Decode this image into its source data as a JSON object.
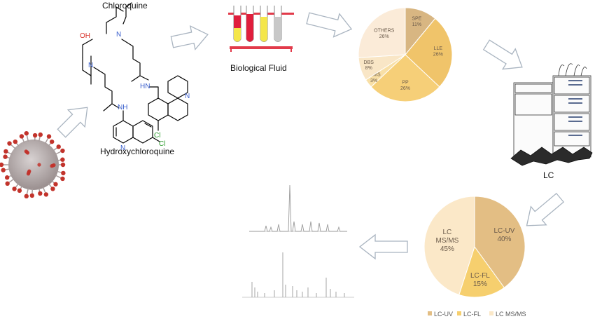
{
  "labels": {
    "chloroquine": "Chloroquine",
    "hydroxychloroquine": "Hydroxychloroquine",
    "biological_fluid": "Biological Fluid",
    "lc": "LC"
  },
  "molecule_atoms": {
    "oh": "OH",
    "n": "N",
    "nh": "NH",
    "hn": "HN",
    "cl": "Cl"
  },
  "colors": {
    "arrow_stroke": "#a9b4c0",
    "atom_n": "#3a5fcd",
    "atom_o": "#d9332b",
    "atom_cl": "#2e9b2e",
    "virus_body": "#b8b0b0",
    "virus_spike": "#c2332b",
    "tube_red": "#e01e3c",
    "tube_yellow": "#f4e64a",
    "tube_grey": "#c8c8c8",
    "rack": "#e23a4a",
    "spectrum": "#9a9a9a"
  },
  "chart_data": [
    {
      "type": "pie",
      "title": "",
      "labels": [
        "SPE",
        "LLE",
        "PP",
        "VAMS",
        "DBS",
        "OTHERS"
      ],
      "values": [
        11,
        26,
        26,
        3,
        8,
        26
      ],
      "value_labels": [
        "11%",
        "26%",
        "26%",
        "3%",
        "8%",
        "26%"
      ],
      "colors": [
        "#d8b682",
        "#f0c46a",
        "#f6cf78",
        "#f8dfa6",
        "#f9e6c6",
        "#fbebd8"
      ],
      "legend": "none"
    },
    {
      "type": "pie",
      "title": "",
      "labels": [
        "LC-UV",
        "LC-FL",
        "LC\nMS/MS"
      ],
      "values": [
        40,
        15,
        45
      ],
      "value_labels": [
        "40%",
        "15%",
        "45%"
      ],
      "colors": [
        "#e3be84",
        "#f6cf6e",
        "#fbe8c8"
      ],
      "legend": "bottom",
      "legend_entries": [
        "LC-UV",
        "LC-FL",
        "LC MS/MS"
      ]
    }
  ]
}
